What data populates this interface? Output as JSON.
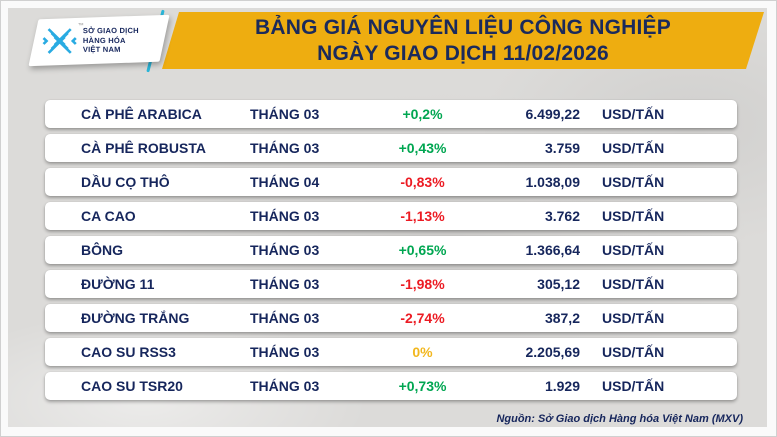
{
  "header": {
    "title_line1": "BẢNG GIÁ NGUYÊN LIỆU CÔNG NGHIỆP",
    "title_line2": "NGÀY GIAO DỊCH 11/02/2026",
    "banner_color": "#EEAD10",
    "title_color": "#1A2A5C"
  },
  "logo": {
    "org_line1": "SỞ GIAO DỊCH",
    "org_line2": "HÀNG HÓA",
    "org_line3": "VIỆT NAM",
    "trademark": "™",
    "icon": "mxv-chevron-diamond-icon",
    "icon_color": "#29ABE2"
  },
  "colors": {
    "up": "#00A651",
    "down": "#EC1B23",
    "zero": "#F2B71E",
    "text": "#16265C",
    "background": "#DCDBD9"
  },
  "table": {
    "rows": [
      {
        "name": "CÀ PHÊ ARABICA",
        "month": "THÁNG 03",
        "change": "+0,2%",
        "direction": "up",
        "price": "6.499,22",
        "unit": "USD/TẤN"
      },
      {
        "name": "CÀ PHÊ ROBUSTA",
        "month": "THÁNG 03",
        "change": "+0,43%",
        "direction": "up",
        "price": "3.759",
        "unit": "USD/TẤN"
      },
      {
        "name": "DẦU CỌ THÔ",
        "month": "THÁNG 04",
        "change": "-0,83%",
        "direction": "down",
        "price": "1.038,09",
        "unit": "USD/TẤN"
      },
      {
        "name": "CA CAO",
        "month": "THÁNG 03",
        "change": "-1,13%",
        "direction": "down",
        "price": "3.762",
        "unit": "USD/TẤN"
      },
      {
        "name": "BÔNG",
        "month": "THÁNG 03",
        "change": "+0,65%",
        "direction": "up",
        "price": "1.366,64",
        "unit": "USD/TẤN"
      },
      {
        "name": "ĐƯỜNG 11",
        "month": "THÁNG 03",
        "change": "-1,98%",
        "direction": "down",
        "price": "305,12",
        "unit": "USD/TẤN"
      },
      {
        "name": "ĐƯỜNG TRẮNG",
        "month": "THÁNG 03",
        "change": "-2,74%",
        "direction": "down",
        "price": "387,2",
        "unit": "USD/TẤN"
      },
      {
        "name": "CAO SU RSS3",
        "month": "THÁNG 03",
        "change": "0%",
        "direction": "zero",
        "price": "2.205,69",
        "unit": "USD/TẤN"
      },
      {
        "name": "CAO SU TSR20",
        "month": "THÁNG 03",
        "change": "+0,73%",
        "direction": "up",
        "price": "1.929",
        "unit": "USD/TẤN"
      }
    ]
  },
  "footer": {
    "source": "Nguồn: Sở Giao dịch Hàng hóa Việt Nam (MXV)"
  },
  "chart_data": {
    "type": "table",
    "title": "BẢNG GIÁ NGUYÊN LIỆU CÔNG NGHIỆP",
    "subtitle": "NGÀY GIAO DỊCH 11/02/2026",
    "rows": [
      [
        "CÀ PHÊ ARABICA",
        "THÁNG 03",
        "+0,2%",
        "6.499,22",
        "USD/TẤN"
      ],
      [
        "CÀ PHÊ ROBUSTA",
        "THÁNG 03",
        "+0,43%",
        "3.759",
        "USD/TẤN"
      ],
      [
        "DẦU CỌ THÔ",
        "THÁNG 04",
        "-0,83%",
        "1.038,09",
        "USD/TẤN"
      ],
      [
        "CA CAO",
        "THÁNG 03",
        "-1,13%",
        "3.762",
        "USD/TẤN"
      ],
      [
        "BÔNG",
        "THÁNG 03",
        "+0,65%",
        "1.366,64",
        "USD/TẤN"
      ],
      [
        "ĐƯỜNG 11",
        "THÁNG 03",
        "-1,98%",
        "305,12",
        "USD/TẤN"
      ],
      [
        "ĐƯỜNG TRẮNG",
        "THÁNG 03",
        "-2,74%",
        "387,2",
        "USD/TẤN"
      ],
      [
        "CAO SU RSS3",
        "THÁNG 03",
        "0%",
        "2.205,69",
        "USD/TẤN"
      ],
      [
        "CAO SU TSR20",
        "THÁNG 03",
        "+0,73%",
        "1.929",
        "USD/TẤN"
      ]
    ],
    "change_pct": [
      0.2,
      0.43,
      -0.83,
      -1.13,
      0.65,
      -1.98,
      -2.74,
      0,
      0.73
    ],
    "prices": [
      6499.22,
      3759,
      1038.09,
      3762,
      1366.64,
      305.12,
      387.2,
      2205.69,
      1929
    ],
    "source_note": "Nguồn: Sở Giao dịch Hàng hóa Việt Nam (MXV)"
  }
}
